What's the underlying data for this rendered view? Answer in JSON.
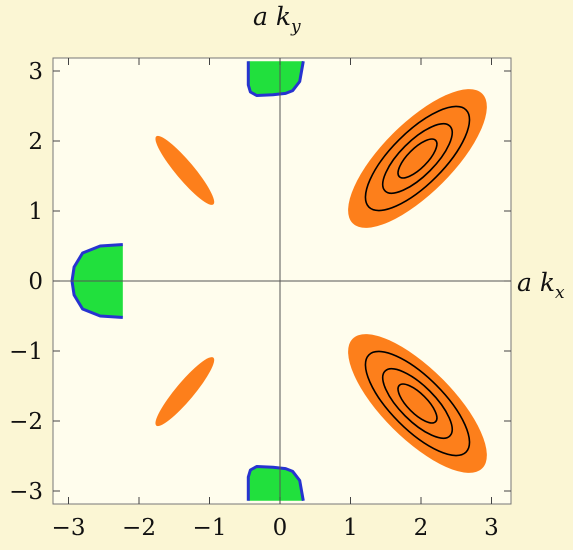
{
  "chart_data": {
    "type": "contour",
    "xlabel": "a k",
    "xlabel_sub": "x",
    "ylabel": "a k",
    "ylabel_sub": "y",
    "xlim": [
      -3.14,
      3.14
    ],
    "ylim": [
      -3.14,
      3.14
    ],
    "xticks": [
      -3,
      -2,
      -1,
      0,
      1,
      2,
      3
    ],
    "yticks": [
      -3,
      -2,
      -1,
      0,
      1,
      2,
      3
    ],
    "tick_labels_x": [
      "−3",
      "−2",
      "−1",
      "0",
      "1",
      "2",
      "3"
    ],
    "tick_labels_y": [
      "−3",
      "−2",
      "−1",
      "0",
      "1",
      "2",
      "3"
    ],
    "grid": false,
    "colors": {
      "background": "#fbf6d4",
      "plot_area": "#fffded",
      "orange_region": "#fd7f1b",
      "green_region": "#21e03d",
      "green_border": "#2733d0",
      "contour_line": "#000000",
      "axis_line": "#555555"
    },
    "orange_regions": [
      {
        "center": [
          1.95,
          1.75
        ],
        "semi_axes": [
          1.3,
          0.5
        ],
        "angle_deg": -45,
        "contour_levels": [
          0.75,
          0.5,
          0.28
        ]
      },
      {
        "center": [
          1.95,
          -1.75
        ],
        "semi_axes": [
          1.3,
          0.5
        ],
        "angle_deg": 45,
        "contour_levels": [
          0.75,
          0.5,
          0.28
        ]
      },
      {
        "center": [
          -1.35,
          1.58
        ],
        "semi_axes": [
          0.63,
          0.13
        ],
        "angle_deg": 50,
        "contour_levels": []
      },
      {
        "center": [
          -1.35,
          -1.58
        ],
        "semi_axes": [
          0.63,
          0.13
        ],
        "angle_deg": -50,
        "contour_levels": []
      }
    ],
    "green_regions": [
      {
        "name": "top",
        "outline": [
          [
            -0.45,
            3.14
          ],
          [
            -0.45,
            2.8
          ],
          [
            -0.42,
            2.7
          ],
          [
            -0.33,
            2.65
          ],
          [
            -0.1,
            2.66
          ],
          [
            0.08,
            2.68
          ],
          [
            0.18,
            2.72
          ],
          [
            0.28,
            2.85
          ],
          [
            0.33,
            3.14
          ]
        ]
      },
      {
        "name": "bottom",
        "outline": [
          [
            -0.45,
            -3.14
          ],
          [
            -0.45,
            -2.8
          ],
          [
            -0.42,
            -2.7
          ],
          [
            -0.33,
            -2.65
          ],
          [
            -0.1,
            -2.66
          ],
          [
            0.08,
            -2.68
          ],
          [
            0.18,
            -2.72
          ],
          [
            0.28,
            -2.85
          ],
          [
            0.33,
            -3.14
          ]
        ]
      },
      {
        "name": "left",
        "outline": [
          [
            -2.23,
            0.52
          ],
          [
            -2.25,
            0.52
          ],
          [
            -2.55,
            0.5
          ],
          [
            -2.8,
            0.4
          ],
          [
            -2.92,
            0.2
          ],
          [
            -2.95,
            0
          ],
          [
            -2.92,
            -0.2
          ],
          [
            -2.8,
            -0.4
          ],
          [
            -2.55,
            -0.5
          ],
          [
            -2.25,
            -0.52
          ],
          [
            -2.23,
            -0.52
          ]
        ]
      }
    ]
  }
}
